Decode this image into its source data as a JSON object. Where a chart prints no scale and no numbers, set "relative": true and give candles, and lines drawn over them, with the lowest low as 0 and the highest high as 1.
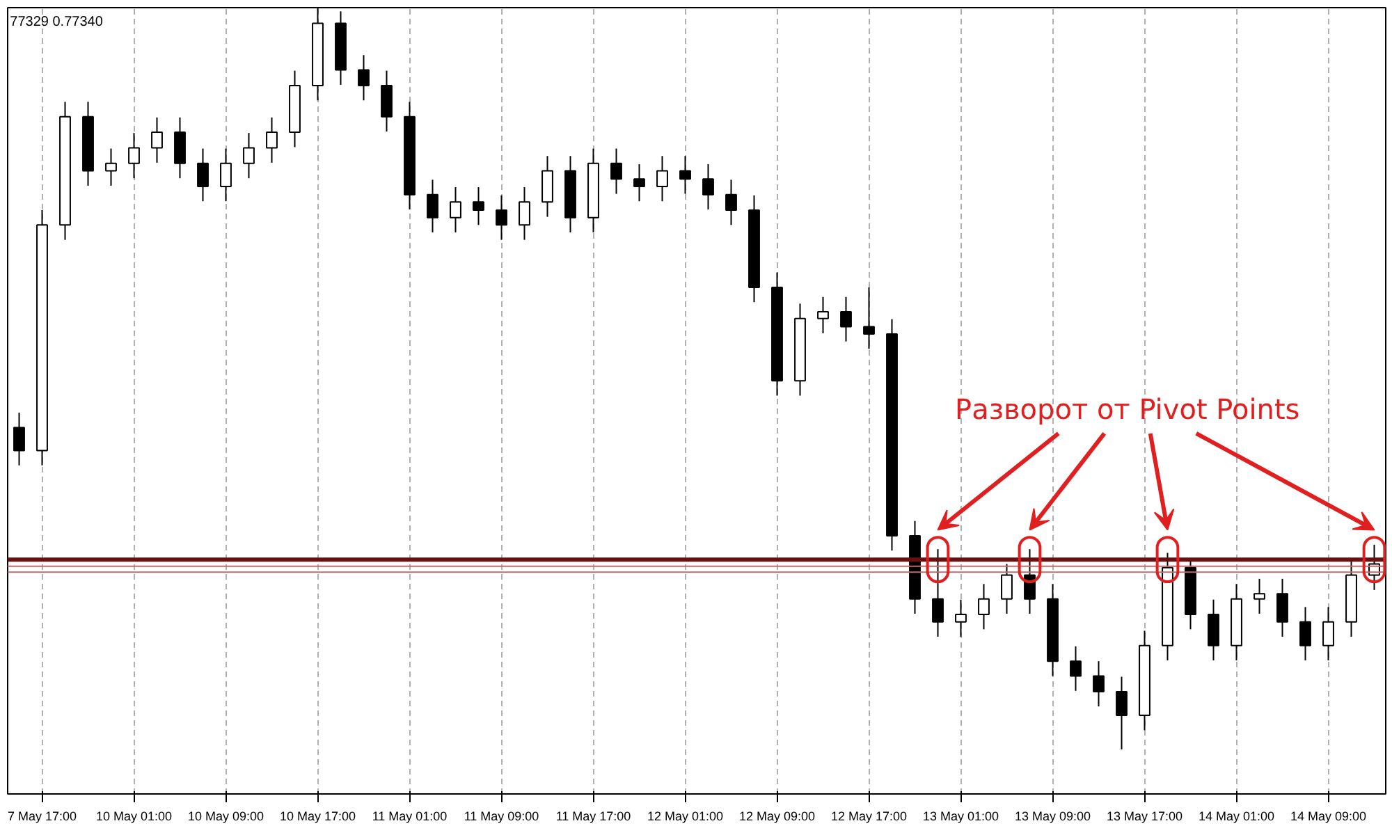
{
  "chart_data": {
    "type": "candlestick",
    "relative": true,
    "categories": [
      null,
      "7 May 17:00",
      null,
      null,
      null,
      "10 May 01:00",
      null,
      null,
      null,
      "10 May 09:00",
      null,
      null,
      null,
      "10 May 17:00",
      null,
      null,
      null,
      "11 May 01:00",
      null,
      null,
      null,
      "11 May 09:00",
      null,
      null,
      null,
      "11 May 17:00",
      null,
      null,
      null,
      "12 May 01:00",
      null,
      null,
      null,
      "12 May 09:00",
      null,
      null,
      null,
      "12 May 17:00",
      null,
      null,
      null,
      "13 May 01:00",
      null,
      null,
      null,
      "13 May 09:00",
      null,
      null,
      null,
      "13 May 17:00",
      null,
      null,
      null,
      "14 May 01:00",
      null,
      null,
      null,
      "14 May 09:00",
      null,
      null
    ],
    "ohlc": [
      [
        0.434,
        0.454,
        0.383,
        0.403
      ],
      [
        0.403,
        0.727,
        0.383,
        0.707
      ],
      [
        0.707,
        0.873,
        0.687,
        0.853
      ],
      [
        0.853,
        0.873,
        0.76,
        0.78
      ],
      [
        0.78,
        0.81,
        0.76,
        0.79
      ],
      [
        0.79,
        0.831,
        0.77,
        0.811
      ],
      [
        0.811,
        0.852,
        0.791,
        0.832
      ],
      [
        0.832,
        0.852,
        0.77,
        0.79
      ],
      [
        0.79,
        0.81,
        0.739,
        0.759
      ],
      [
        0.759,
        0.81,
        0.739,
        0.79
      ],
      [
        0.79,
        0.831,
        0.77,
        0.811
      ],
      [
        0.811,
        0.852,
        0.791,
        0.832
      ],
      [
        0.832,
        0.915,
        0.812,
        0.895
      ],
      [
        0.895,
        1.0,
        0.875,
        0.979
      ],
      [
        0.979,
        0.995,
        0.896,
        0.916
      ],
      [
        0.916,
        0.936,
        0.875,
        0.895
      ],
      [
        0.895,
        0.915,
        0.833,
        0.853
      ],
      [
        0.853,
        0.873,
        0.728,
        0.748
      ],
      [
        0.748,
        0.768,
        0.697,
        0.717
      ],
      [
        0.717,
        0.758,
        0.697,
        0.738
      ],
      [
        0.738,
        0.758,
        0.707,
        0.727
      ],
      [
        0.727,
        0.747,
        0.687,
        0.707
      ],
      [
        0.707,
        0.758,
        0.687,
        0.738
      ],
      [
        0.738,
        0.8,
        0.718,
        0.78
      ],
      [
        0.78,
        0.8,
        0.697,
        0.717
      ],
      [
        0.717,
        0.81,
        0.697,
        0.79
      ],
      [
        0.79,
        0.81,
        0.749,
        0.769
      ],
      [
        0.769,
        0.789,
        0.739,
        0.759
      ],
      [
        0.759,
        0.8,
        0.739,
        0.78
      ],
      [
        0.78,
        0.8,
        0.749,
        0.769
      ],
      [
        0.769,
        0.789,
        0.728,
        0.748
      ],
      [
        0.748,
        0.768,
        0.707,
        0.727
      ],
      [
        0.727,
        0.747,
        0.603,
        0.623
      ],
      [
        0.623,
        0.643,
        0.477,
        0.497
      ],
      [
        0.497,
        0.601,
        0.477,
        0.581
      ],
      [
        0.581,
        0.61,
        0.561,
        0.59
      ],
      [
        0.59,
        0.61,
        0.55,
        0.57
      ],
      [
        0.57,
        0.623,
        0.54,
        0.56
      ],
      [
        0.56,
        0.58,
        0.268,
        0.288
      ],
      [
        0.288,
        0.308,
        0.183,
        0.203
      ],
      [
        0.203,
        0.27,
        0.152,
        0.172
      ],
      [
        0.172,
        0.202,
        0.152,
        0.182
      ],
      [
        0.182,
        0.223,
        0.162,
        0.203
      ],
      [
        0.203,
        0.25,
        0.183,
        0.235
      ],
      [
        0.235,
        0.27,
        0.183,
        0.203
      ],
      [
        0.203,
        0.223,
        0.099,
        0.119
      ],
      [
        0.119,
        0.139,
        0.079,
        0.099
      ],
      [
        0.099,
        0.119,
        0.058,
        0.078
      ],
      [
        0.078,
        0.098,
        0.0,
        0.046
      ],
      [
        0.046,
        0.16,
        0.026,
        0.14
      ],
      [
        0.14,
        0.265,
        0.12,
        0.245
      ],
      [
        0.245,
        0.255,
        0.162,
        0.182
      ],
      [
        0.182,
        0.202,
        0.12,
        0.14
      ],
      [
        0.14,
        0.223,
        0.12,
        0.203
      ],
      [
        0.203,
        0.23,
        0.183,
        0.21
      ],
      [
        0.21,
        0.23,
        0.152,
        0.172
      ],
      [
        0.172,
        0.192,
        0.12,
        0.14
      ],
      [
        0.14,
        0.192,
        0.12,
        0.172
      ],
      [
        0.172,
        0.255,
        0.152,
        0.235
      ],
      [
        0.235,
        0.276,
        0.215,
        0.25
      ]
    ],
    "color": "#000000",
    "grid": "x",
    "ref_lines": [
      {
        "axis": "y",
        "value": 0.256,
        "color": "#6b1010"
      },
      {
        "axis": "y",
        "value": 0.247,
        "color": "#c46a6a"
      },
      {
        "axis": "y",
        "value": 0.239,
        "color": "#c46a6a"
      }
    ],
    "annotations": [
      "77329 0.77340",
      "Разворот от Pivot Points"
    ]
  }
}
